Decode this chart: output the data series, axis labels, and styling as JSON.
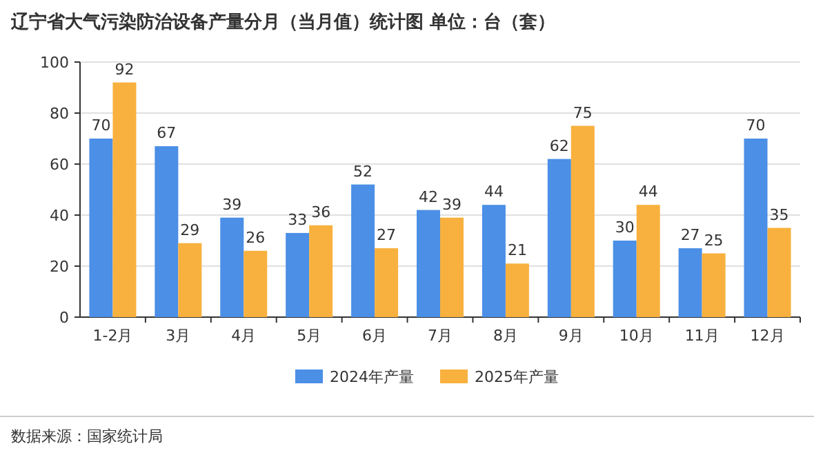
{
  "chart_data": {
    "type": "bar",
    "title": "辽宁省大气污染防治设备产量分月（当月值）统计图 单位：台（套）",
    "categories": [
      "1-2月",
      "3月",
      "4月",
      "5月",
      "6月",
      "7月",
      "8月",
      "9月",
      "10月",
      "11月",
      "12月"
    ],
    "series": [
      {
        "name": "2024年产量",
        "color": "#4b8fe6",
        "values": [
          70,
          67,
          39,
          33,
          52,
          42,
          44,
          62,
          30,
          27,
          70
        ]
      },
      {
        "name": "2025年产量",
        "color": "#f8b13e",
        "values": [
          92,
          29,
          26,
          36,
          27,
          39,
          21,
          75,
          44,
          25,
          35
        ]
      }
    ],
    "ylim": [
      0,
      100
    ],
    "yticks": [
      0,
      20,
      40,
      60,
      80,
      100
    ],
    "grid": "y",
    "legend": "bottom",
    "data_labels": true,
    "annotations": [
      "数据来源：国家统计局"
    ]
  }
}
